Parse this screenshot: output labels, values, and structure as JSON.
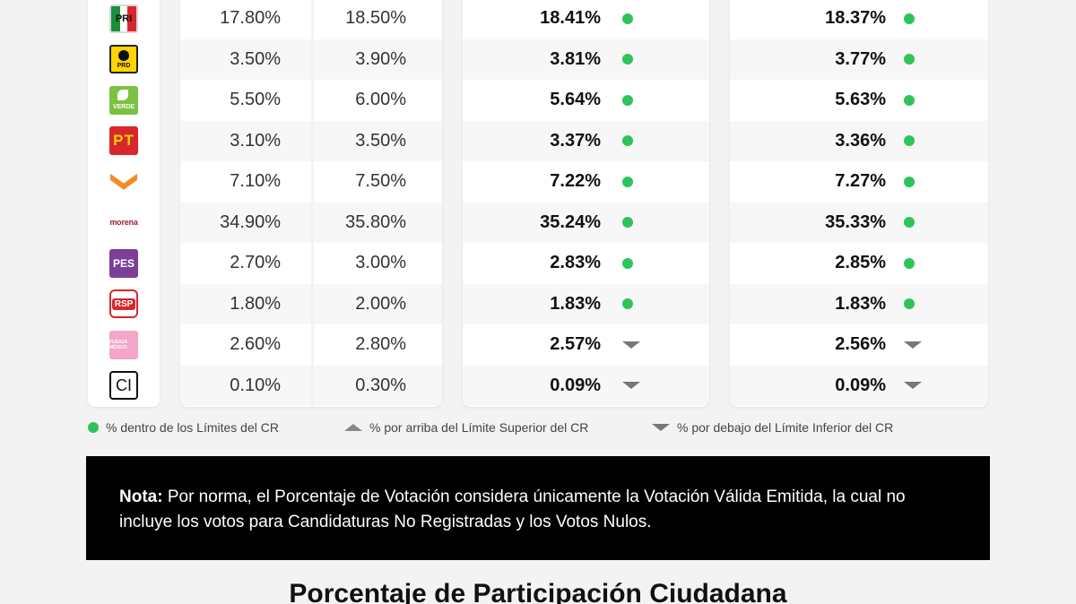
{
  "rows": [
    {
      "party": "PRI",
      "logo_text": "PRI",
      "low": "17.80%",
      "high": "18.50%",
      "est1": "18.41%",
      "status1": "within",
      "est2": "18.37%",
      "status2": "within"
    },
    {
      "party": "PRD",
      "logo_text": "PRD",
      "low": "3.50%",
      "high": "3.90%",
      "est1": "3.81%",
      "status1": "within",
      "est2": "3.77%",
      "status2": "within"
    },
    {
      "party": "PVEM",
      "logo_text": "VERDE",
      "low": "5.50%",
      "high": "6.00%",
      "est1": "5.64%",
      "status1": "within",
      "est2": "5.63%",
      "status2": "within"
    },
    {
      "party": "PT",
      "logo_text": "PT",
      "low": "3.10%",
      "high": "3.50%",
      "est1": "3.37%",
      "status1": "within",
      "est2": "3.36%",
      "status2": "within"
    },
    {
      "party": "MC",
      "logo_text": "",
      "low": "7.10%",
      "high": "7.50%",
      "est1": "7.22%",
      "status1": "within",
      "est2": "7.27%",
      "status2": "within"
    },
    {
      "party": "MORENA",
      "logo_text": "morena",
      "low": "34.90%",
      "high": "35.80%",
      "est1": "35.24%",
      "status1": "within",
      "est2": "35.33%",
      "status2": "within"
    },
    {
      "party": "PES",
      "logo_text": "PES",
      "low": "2.70%",
      "high": "3.00%",
      "est1": "2.83%",
      "status1": "within",
      "est2": "2.85%",
      "status2": "within"
    },
    {
      "party": "RSP",
      "logo_text": "RSP",
      "low": "1.80%",
      "high": "2.00%",
      "est1": "1.83%",
      "status1": "within",
      "est2": "1.83%",
      "status2": "within"
    },
    {
      "party": "FXM",
      "logo_text": "FUERZA MÉXICO",
      "low": "2.60%",
      "high": "2.80%",
      "est1": "2.57%",
      "status1": "below",
      "est2": "2.56%",
      "status2": "below"
    },
    {
      "party": "CI",
      "logo_text": "CI",
      "low": "0.10%",
      "high": "0.30%",
      "est1": "0.09%",
      "status1": "below",
      "est2": "0.09%",
      "status2": "below"
    }
  ],
  "legend": {
    "within": "% dentro de los Límites del CR",
    "above": "% por arriba del Límite Superior del CR",
    "below": "% por debajo del Límite Inferior del CR"
  },
  "note": {
    "label": "Nota:",
    "text": " Por norma, el Porcentaje de Votación considera únicamente la Votación Válida Emitida, la cual no incluye los votos para Candidaturas No Registradas y los Votos Nulos."
  },
  "section_title": "Porcentaje de Participación Ciudadana",
  "colors": {
    "within": "#2fc45a",
    "below": "#777777",
    "note_bg": "#000000"
  },
  "icons": {
    "within": "green-dot-icon",
    "above": "triangle-up-icon",
    "below": "triangle-down-icon"
  }
}
